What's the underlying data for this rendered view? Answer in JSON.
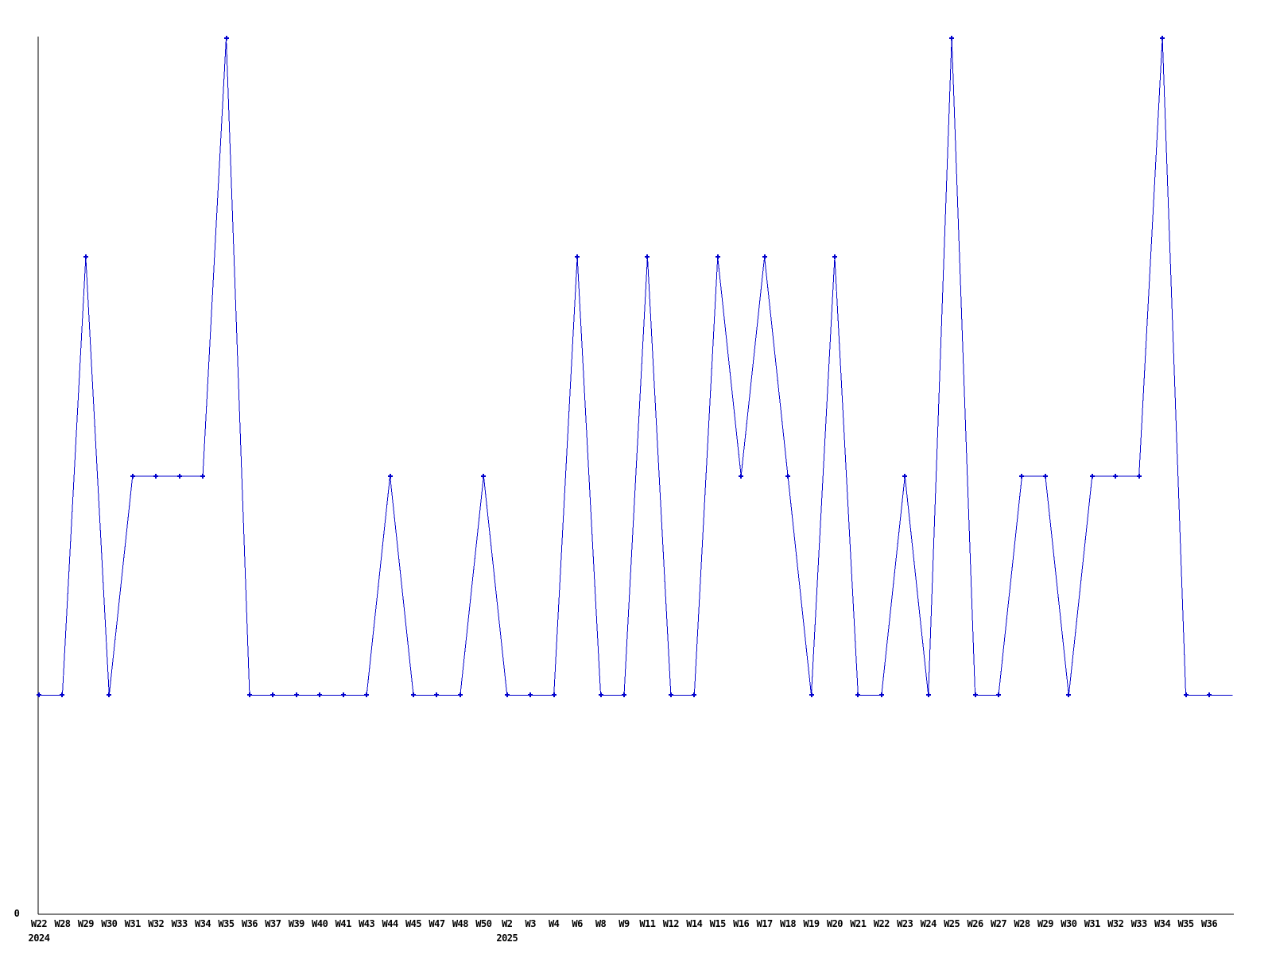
{
  "chart_data": {
    "type": "line",
    "title": "",
    "legend_position": "none",
    "grid": false,
    "line_color": "#0000cc",
    "marker_color": "#0000cc",
    "axis_color": "#000000",
    "text_color": "#000000",
    "marker_style": "plus",
    "x_tick_labels": [
      "W22",
      "W28",
      "W29",
      "W30",
      "W31",
      "W32",
      "W33",
      "W34",
      "W35",
      "W36",
      "W37",
      "W39",
      "W40",
      "W41",
      "W43",
      "W44",
      "W45",
      "W47",
      "W48",
      "W50",
      "W2",
      "W3",
      "W4",
      "W6",
      "W8",
      "W9",
      "W11",
      "W12",
      "W14",
      "W15",
      "W16",
      "W17",
      "W18",
      "W19",
      "W20",
      "W21",
      "W22",
      "W23",
      "W24",
      "W25",
      "W26",
      "W27",
      "W28",
      "W29",
      "W30",
      "W31",
      "W32",
      "W33",
      "W34",
      "W35",
      "W36"
    ],
    "values": [
      1,
      1,
      3,
      1,
      2,
      2,
      2,
      2,
      4,
      1,
      1,
      1,
      1,
      1,
      1,
      2,
      1,
      1,
      1,
      2,
      1,
      1,
      1,
      3,
      1,
      1,
      3,
      1,
      1,
      3,
      2,
      3,
      2,
      1,
      3,
      1,
      1,
      2,
      1,
      4,
      1,
      1,
      2,
      2,
      1,
      2,
      2,
      2,
      4,
      1,
      1
    ],
    "year_markers": [
      {
        "label": "2024",
        "index": 0
      },
      {
        "label": "2025",
        "index": 20
      }
    ],
    "y_axis": {
      "tick_labels": [
        "0"
      ],
      "min": 0,
      "implied_max": 4
    },
    "line_extension": {
      "slots": 1,
      "value": 1
    }
  }
}
